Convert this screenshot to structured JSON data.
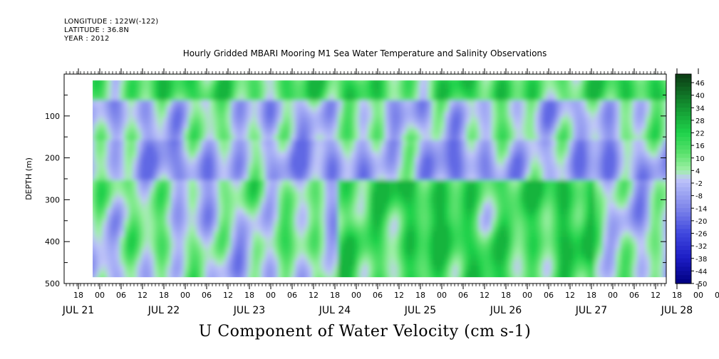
{
  "header": {
    "longitude": "LONGITUDE : 122W(-122)",
    "latitude": "LATITUDE : 36.8N",
    "year": "YEAR : 2012"
  },
  "chart_data": {
    "type": "heatmap",
    "title": "Hourly Gridded MBARI Mooring M1 Sea Water Temperature and Salinity Observations",
    "subtitle": "U Component of Water Velocity (cm s-1)",
    "ylabel": "DEPTH (m)",
    "xlabel": "",
    "y_axis": {
      "range": [
        0,
        500
      ],
      "inverted": true,
      "ticks": [
        100,
        200,
        300,
        400,
        500
      ]
    },
    "x_axis": {
      "hour_labels": [
        "18",
        "00",
        "06",
        "12",
        "18",
        "00",
        "06",
        "12",
        "18",
        "00",
        "06",
        "12",
        "18",
        "00",
        "06",
        "12",
        "18",
        "00",
        "06",
        "12",
        "18",
        "00",
        "06",
        "12",
        "18",
        "00",
        "06",
        "12",
        "18",
        "00",
        "06",
        "12"
      ],
      "day_labels": [
        "JUL 21",
        "JUL 22",
        "JUL 23",
        "JUL 24",
        "JUL 25",
        "JUL 26",
        "JUL 27",
        "JUL 28"
      ]
    },
    "data_extent": {
      "depth_min": 15,
      "depth_max": 485
    },
    "colorbar": {
      "labels": [
        "46",
        "40",
        "34",
        "28",
        "22",
        "16",
        "10",
        "4",
        "-2",
        "-8",
        "-14",
        "-20",
        "-26",
        "-32",
        "-38",
        "-44",
        "-50"
      ],
      "range": [
        -50,
        50
      ]
    },
    "value_pattern": {
      "description": "surface layer mostly positive (green), mid layer near zero to negative (blue), deep layer positive from Jul 24 to Jul 27",
      "surface_mean": 14,
      "mid_mean": -6,
      "deep_mean_jul25_27": 18,
      "value_range": [
        -20,
        28
      ]
    },
    "colors": {
      "deep_positive": "#0b3b14",
      "positive": "#1ed24a",
      "light_positive": "#9ff0a8",
      "near_zero": "#c0c6f8",
      "negative": "#7f86ea",
      "deep_negative": "#000080"
    }
  }
}
